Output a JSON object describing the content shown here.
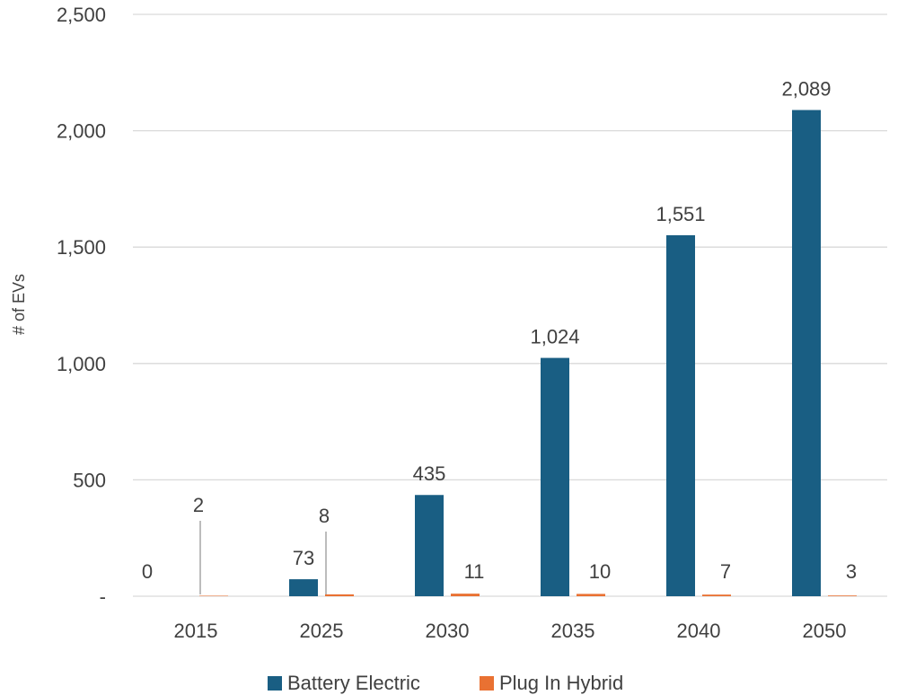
{
  "chart_data": {
    "type": "bar",
    "title": "",
    "xlabel": "",
    "ylabel": "# of EVs",
    "ylim": [
      0,
      2500
    ],
    "yticks": [
      0,
      500,
      1000,
      1500,
      2000,
      2500
    ],
    "ytick_labels": [
      "-",
      "500",
      "1,000",
      "1,500",
      "2,000",
      "2,500"
    ],
    "categories": [
      "2015",
      "2025",
      "2030",
      "2035",
      "2040",
      "2050"
    ],
    "series": [
      {
        "name": "Battery Electric",
        "color": "#195E83",
        "values": [
          0,
          73,
          435,
          1024,
          1551,
          2089
        ],
        "labels": [
          "0",
          "73",
          "435",
          "1,024",
          "1,551",
          "2,089"
        ]
      },
      {
        "name": "Plug In Hybrid",
        "color": "#E97132",
        "values": [
          2,
          8,
          11,
          10,
          7,
          3
        ],
        "labels": [
          "2",
          "8",
          "11",
          "10",
          "7",
          "3"
        ]
      }
    ],
    "grid": true,
    "legend_position": "bottom",
    "gridline_color": "#d9d9d9",
    "leader_line_color": "#a6a6a6"
  }
}
